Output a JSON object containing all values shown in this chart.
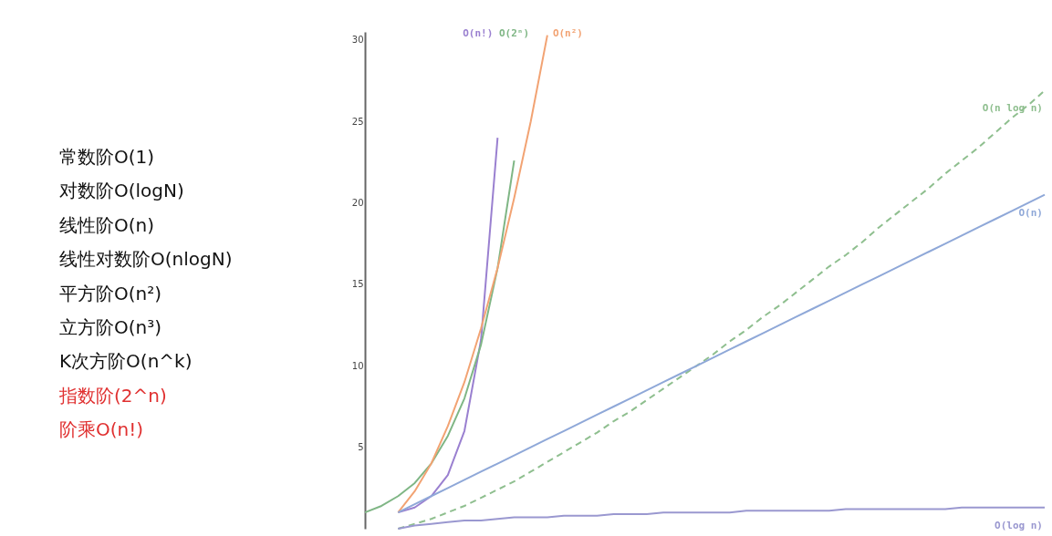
{
  "chart_data": {
    "type": "line",
    "ylim": [
      0,
      30.5
    ],
    "yticks": [
      5,
      10,
      15,
      20,
      25,
      30
    ],
    "tick_labels": "y",
    "grid": false,
    "categories": [
      null,
      null,
      null,
      null,
      null,
      null,
      null,
      null,
      null,
      null,
      null,
      null,
      null,
      null,
      null,
      null,
      null,
      null,
      null,
      null,
      null,
      null,
      null,
      null,
      null,
      null,
      null,
      null,
      null,
      null,
      null,
      null,
      null,
      null,
      null,
      null,
      null,
      null,
      null,
      null,
      null,
      null
    ],
    "series": [
      {
        "name": "O(n!)",
        "color": "#9a80d0",
        "values": [
          null,
          null,
          1,
          1.3,
          2,
          3.3,
          6,
          11.6,
          24,
          null,
          null,
          null,
          null,
          null,
          null,
          null,
          null,
          null,
          null,
          null,
          null,
          null,
          null,
          null,
          null,
          null,
          null,
          null,
          null,
          null,
          null,
          null,
          null,
          null,
          null,
          null,
          null,
          null,
          null,
          null,
          null,
          null
        ]
      },
      {
        "name": "O(2ⁿ)",
        "color": "#7fb685",
        "values": [
          1,
          1.4,
          2,
          2.8,
          4,
          5.7,
          8,
          11.3,
          16,
          22.6,
          null,
          null,
          null,
          null,
          null,
          null,
          null,
          null,
          null,
          null,
          null,
          null,
          null,
          null,
          null,
          null,
          null,
          null,
          null,
          null,
          null,
          null,
          null,
          null,
          null,
          null,
          null,
          null,
          null,
          null,
          null,
          null
        ]
      },
      {
        "name": "O(n²)",
        "color": "#f2a373",
        "values": [
          null,
          null,
          1,
          2.3,
          4,
          6.3,
          9,
          12.3,
          16,
          20.3,
          25,
          30.3,
          null,
          null,
          null,
          null,
          null,
          null,
          null,
          null,
          null,
          null,
          null,
          null,
          null,
          null,
          null,
          null,
          null,
          null,
          null,
          null,
          null,
          null,
          null,
          null,
          null,
          null,
          null,
          null,
          null,
          null
        ]
      },
      {
        "name": "O(n log n)",
        "color": "#8fbf8f",
        "line_style": "dashed",
        "values": [
          null,
          null,
          0,
          0.3,
          0.6,
          1,
          1.4,
          1.9,
          2.4,
          2.9,
          3.5,
          4.1,
          4.7,
          5.3,
          5.9,
          6.6,
          7.2,
          7.9,
          8.6,
          9.3,
          10,
          10.7,
          11.5,
          12.2,
          13,
          13.7,
          14.5,
          15.3,
          16.1,
          16.8,
          17.6,
          18.5,
          19.3,
          20.1,
          20.9,
          21.8,
          22.6,
          23.4,
          24.3,
          25.2,
          26,
          26.9
        ]
      },
      {
        "name": "O(n)",
        "color": "#8fa8d8",
        "values": [
          null,
          null,
          1,
          1.5,
          2,
          2.5,
          3,
          3.5,
          4,
          4.5,
          5,
          5.5,
          6,
          6.5,
          7,
          7.5,
          8,
          8.5,
          9,
          9.5,
          10,
          10.5,
          11,
          11.5,
          12,
          12.5,
          13,
          13.5,
          14,
          14.5,
          15,
          15.5,
          16,
          16.5,
          17,
          17.5,
          18,
          18.5,
          19,
          19.5,
          20,
          20.5
        ]
      },
      {
        "name": "O(log n)",
        "color": "#9a98d0",
        "values": [
          null,
          null,
          0,
          0.2,
          0.3,
          0.4,
          0.5,
          0.5,
          0.6,
          0.7,
          0.7,
          0.7,
          0.8,
          0.8,
          0.8,
          0.9,
          0.9,
          0.9,
          1,
          1,
          1,
          1,
          1,
          1.1,
          1.1,
          1.1,
          1.1,
          1.1,
          1.1,
          1.2,
          1.2,
          1.2,
          1.2,
          1.2,
          1.2,
          1.2,
          1.3,
          1.3,
          1.3,
          1.3,
          1.3,
          1.3
        ]
      }
    ],
    "annotations": [
      "常数阶O(1)",
      "对数阶O(logN)",
      "线性阶O(n)",
      "线性对数阶O(nlogN)",
      "平方阶O(n²)",
      "立方阶O(n³)",
      "K次方阶O(n^k)",
      "指数阶(2^n)",
      "阶乘O(n!)"
    ]
  }
}
